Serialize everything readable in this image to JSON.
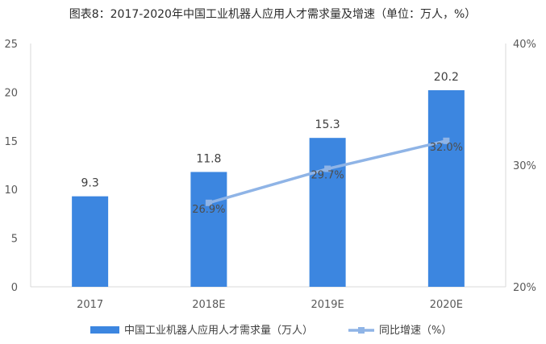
{
  "chart_data": {
    "type": "bar",
    "title": "图表8：2017-2020年中国工业机器人应用人才需求量及增速（单位：万人，%）",
    "categories": [
      "2017",
      "2018E",
      "2019E",
      "2020E"
    ],
    "series": [
      {
        "name": "中国工业机器人应用人才需求量（万人）",
        "type": "bar",
        "axis": "left",
        "values": [
          9.3,
          11.8,
          15.3,
          20.2
        ],
        "labels": [
          "9.3",
          "11.8",
          "15.3",
          "20.2"
        ]
      },
      {
        "name": "同比增速（%）",
        "type": "line",
        "axis": "right",
        "values": [
          null,
          26.9,
          29.7,
          32.0
        ],
        "labels": [
          "",
          "26.9%",
          "29.7%",
          "32.0%"
        ]
      }
    ],
    "y_left": {
      "ylim": [
        0,
        25
      ],
      "ticks": [
        0,
        5,
        10,
        15,
        20,
        25
      ],
      "tick_labels": [
        "0",
        "5",
        "10",
        "15",
        "20",
        "25"
      ]
    },
    "y_right": {
      "ylim": [
        20,
        40
      ],
      "ticks": [
        20,
        30,
        40
      ],
      "tick_labels": [
        "20%",
        "30%",
        "40%"
      ]
    },
    "grid": false,
    "legend_position": "bottom",
    "colors": {
      "bar": "#3c86e0",
      "line": "#8fb4e6",
      "axis": "#d9d9d9"
    }
  }
}
